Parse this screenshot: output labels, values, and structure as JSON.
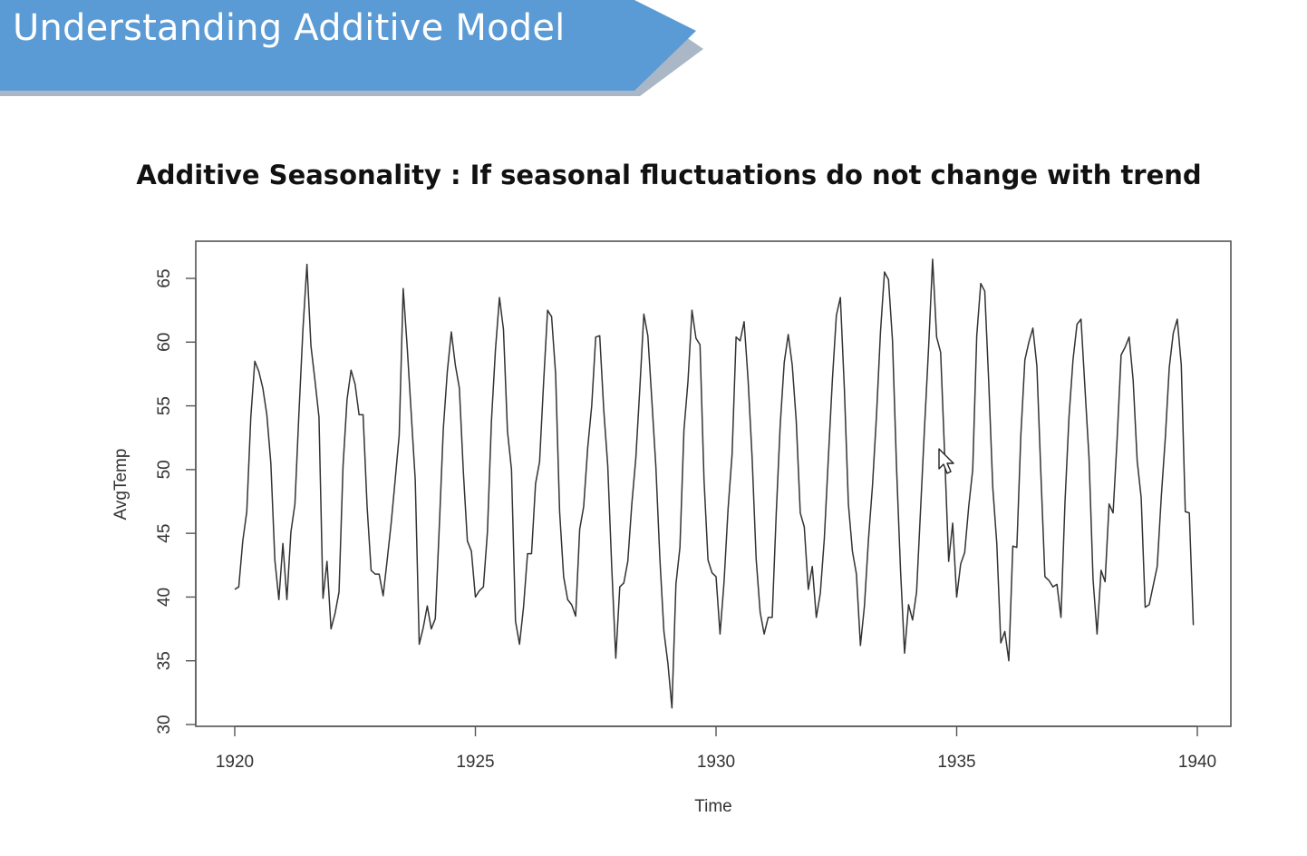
{
  "slide": {
    "title": "Understanding Additive Model",
    "subtitle": "Additive Seasonality : If seasonal fluctuations do not change with trend",
    "banner_color": "#5b9bd5",
    "banner_shadow_color": "#a9b7c6"
  },
  "chart_data": {
    "type": "line",
    "title": "",
    "xlabel": "Time",
    "ylabel": "AvgTemp",
    "xlim": [
      1920,
      1940
    ],
    "ylim": [
      30,
      65
    ],
    "xticks": [
      1920,
      1925,
      1930,
      1935,
      1940
    ],
    "yticks": [
      30,
      35,
      40,
      45,
      50,
      55,
      60,
      65
    ],
    "grid": false,
    "line_color": "#333333",
    "series": [
      {
        "start": 1920.0,
        "frequency": 12,
        "values": [
          40.6,
          40.8,
          44.4,
          46.7,
          54.1,
          58.5,
          57.7,
          56.4,
          54.3,
          50.5,
          42.9,
          39.8,
          44.2,
          39.8,
          45.1,
          47.3,
          54.4,
          61.0,
          66.1,
          59.7,
          57.0,
          54.1,
          39.9,
          42.8,
          37.5,
          38.7,
          40.4,
          50.3,
          55.5,
          57.8,
          56.7,
          54.3,
          54.3,
          47.1,
          42.1,
          41.8,
          41.8,
          40.1,
          42.9,
          45.8,
          49.2,
          52.7,
          64.2,
          59.6,
          54.4,
          49.2,
          36.3,
          37.6,
          39.3,
          37.5,
          38.3,
          45.5,
          53.2,
          57.7,
          60.8,
          58.2,
          56.4,
          49.8,
          44.4,
          43.6,
          40.0,
          40.5,
          40.8,
          45.1,
          53.8,
          59.4,
          63.5,
          61.0,
          53.0,
          50.0,
          38.1,
          36.3,
          39.2,
          43.4,
          43.4,
          48.9,
          50.6,
          56.8,
          62.5,
          62.0,
          57.5,
          46.7,
          41.6,
          39.8,
          39.4,
          38.5,
          45.3,
          47.1,
          51.7,
          55.0,
          60.4,
          60.5,
          54.7,
          50.3,
          42.3,
          35.2,
          40.8,
          41.1,
          42.8,
          47.3,
          50.9,
          56.4,
          62.2,
          60.5,
          55.4,
          50.2,
          43.0,
          37.3,
          34.8,
          31.3,
          41.0,
          43.9,
          53.1,
          56.9,
          62.5,
          60.3,
          59.8,
          49.2,
          42.9,
          41.9,
          41.6,
          37.1,
          41.2,
          46.9,
          51.2,
          60.4,
          60.1,
          61.6,
          57.0,
          50.9,
          43.0,
          38.8,
          37.1,
          38.4,
          38.4,
          46.5,
          53.5,
          58.4,
          60.6,
          58.2,
          53.8,
          46.6,
          45.5,
          40.6,
          42.4,
          38.4,
          40.3,
          44.6,
          50.9,
          57.0,
          62.1,
          63.5,
          56.3,
          47.3,
          43.6,
          41.8,
          36.2,
          39.3,
          44.5,
          48.7,
          54.2,
          60.8,
          65.5,
          64.9,
          60.1,
          50.2,
          42.1,
          35.6,
          39.4,
          38.2,
          40.4,
          46.9,
          53.4,
          59.6,
          66.5,
          60.4,
          59.2,
          51.2,
          42.8,
          45.8,
          40.0,
          42.6,
          43.5,
          47.1,
          50.0,
          60.5,
          64.6,
          64.0,
          56.8,
          48.6,
          44.2,
          36.4,
          37.3,
          35.0,
          44.0,
          43.9,
          52.7,
          58.6,
          60.0,
          61.1,
          58.1,
          49.6,
          41.6,
          41.3,
          40.8,
          41.0,
          38.4,
          47.4,
          54.1,
          58.6,
          61.4,
          61.8,
          56.3,
          50.9,
          41.4,
          37.1,
          42.1,
          41.2,
          47.3,
          46.6,
          52.4,
          59.0,
          59.6,
          60.4,
          57.0,
          50.7,
          47.8,
          39.2,
          39.4,
          40.9,
          42.4,
          47.8,
          52.4,
          58.0,
          60.7,
          61.8,
          58.2,
          46.7,
          46.6,
          37.8
        ]
      }
    ]
  }
}
